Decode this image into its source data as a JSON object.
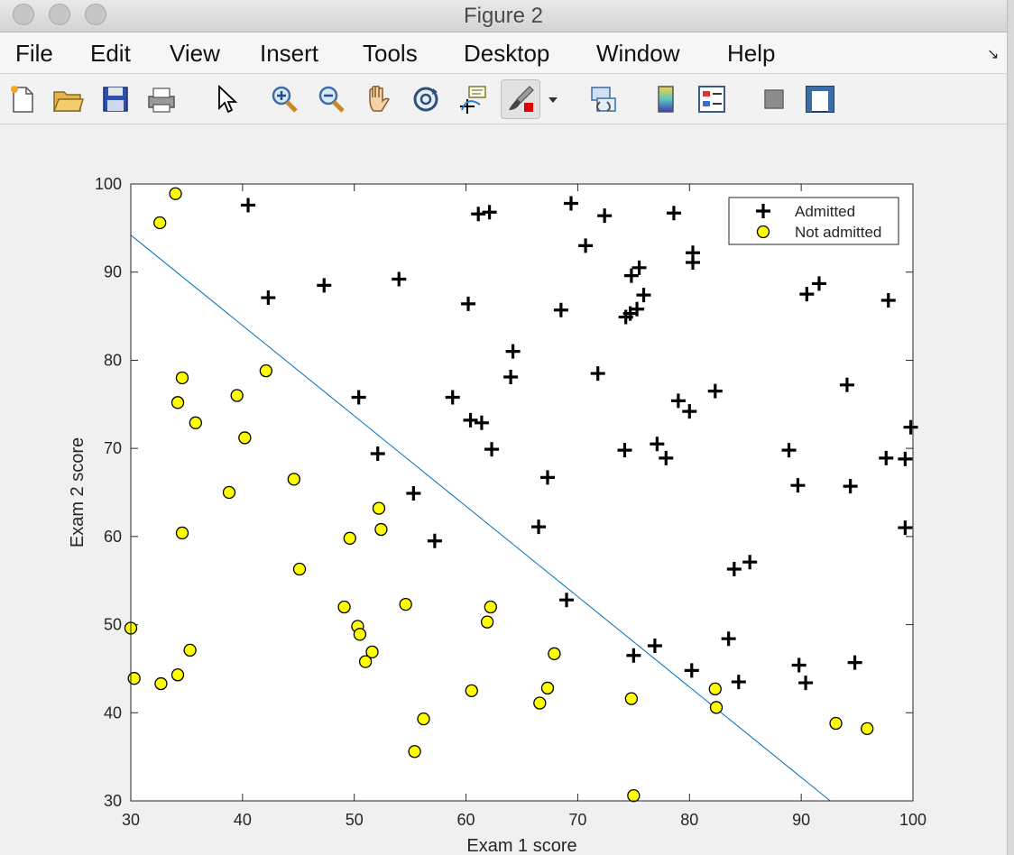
{
  "window": {
    "title": "Figure 2"
  },
  "menu": {
    "items": [
      "File",
      "Edit",
      "View",
      "Insert",
      "Tools",
      "Desktop",
      "Window",
      "Help"
    ],
    "overflow_arrow": "↘"
  },
  "toolbar": {
    "icons": [
      "new-figure-icon",
      "open-file-icon",
      "save-icon",
      "print-icon",
      "pointer-icon",
      "zoom-in-icon",
      "zoom-out-icon",
      "pan-hand-icon",
      "rotate-3d-icon",
      "data-cursor-icon",
      "brush-icon",
      "brush-dropdown-icon",
      "link-plot-icon",
      "colorbar-icon",
      "legend-icon",
      "hide-plot-tools-icon",
      "show-plot-tools-icon"
    ]
  },
  "chart_data": {
    "type": "scatter",
    "xlabel": "Exam 1 score",
    "ylabel": "Exam 2 score",
    "xlim": [
      30,
      100
    ],
    "ylim": [
      30,
      100
    ],
    "xticks": [
      30,
      40,
      50,
      60,
      70,
      80,
      90,
      100
    ],
    "yticks": [
      30,
      40,
      50,
      60,
      70,
      80,
      90,
      100
    ],
    "grid": false,
    "legend_position": "top-right",
    "series": [
      {
        "name": "Admitted",
        "marker": "plus",
        "color": "#000000",
        "points": [
          [
            40.5,
            97.6
          ],
          [
            42.3,
            87.1
          ],
          [
            47.3,
            88.5
          ],
          [
            54.0,
            89.2
          ],
          [
            50.4,
            75.8
          ],
          [
            52.1,
            69.4
          ],
          [
            55.3,
            64.9
          ],
          [
            57.2,
            59.5
          ],
          [
            60.2,
            86.4
          ],
          [
            61.1,
            96.6
          ],
          [
            62.1,
            96.8
          ],
          [
            64.2,
            81.0
          ],
          [
            64.0,
            78.1
          ],
          [
            58.8,
            75.8
          ],
          [
            60.4,
            73.2
          ],
          [
            61.4,
            72.9
          ],
          [
            62.3,
            69.9
          ],
          [
            66.5,
            61.1
          ],
          [
            67.3,
            66.7
          ],
          [
            69.4,
            97.8
          ],
          [
            70.7,
            93.0
          ],
          [
            72.4,
            96.4
          ],
          [
            68.5,
            85.7
          ],
          [
            71.8,
            78.5
          ],
          [
            74.8,
            89.6
          ],
          [
            75.5,
            90.5
          ],
          [
            75.9,
            87.4
          ],
          [
            74.3,
            84.9
          ],
          [
            74.7,
            85.3
          ],
          [
            75.3,
            85.8
          ],
          [
            74.2,
            69.8
          ],
          [
            77.1,
            70.5
          ],
          [
            77.9,
            68.9
          ],
          [
            79.0,
            75.4
          ],
          [
            80.0,
            74.2
          ],
          [
            82.3,
            76.5
          ],
          [
            78.6,
            96.7
          ],
          [
            80.3,
            92.2
          ],
          [
            80.3,
            91.1
          ],
          [
            69.0,
            52.8
          ],
          [
            75.0,
            46.5
          ],
          [
            76.9,
            47.6
          ],
          [
            80.2,
            44.8
          ],
          [
            83.5,
            48.4
          ],
          [
            84.4,
            43.5
          ],
          [
            84.0,
            56.3
          ],
          [
            85.4,
            57.1
          ],
          [
            88.9,
            69.8
          ],
          [
            89.7,
            65.8
          ],
          [
            90.5,
            87.5
          ],
          [
            91.6,
            88.7
          ],
          [
            94.1,
            77.2
          ],
          [
            94.4,
            65.7
          ],
          [
            97.8,
            86.8
          ],
          [
            97.6,
            68.9
          ],
          [
            99.3,
            68.8
          ],
          [
            99.8,
            72.4
          ],
          [
            99.3,
            61.0
          ],
          [
            89.8,
            45.4
          ],
          [
            90.4,
            43.4
          ],
          [
            94.8,
            45.7
          ]
        ]
      },
      {
        "name": "Not admitted",
        "marker": "circle",
        "color": "#ffff00",
        "points": [
          [
            34.0,
            98.9
          ],
          [
            32.6,
            95.6
          ],
          [
            34.6,
            78.0
          ],
          [
            34.2,
            75.2
          ],
          [
            35.8,
            72.9
          ],
          [
            39.5,
            76.0
          ],
          [
            42.1,
            78.8
          ],
          [
            40.2,
            71.2
          ],
          [
            38.8,
            65.0
          ],
          [
            44.6,
            66.5
          ],
          [
            34.6,
            60.4
          ],
          [
            45.1,
            56.3
          ],
          [
            49.6,
            59.8
          ],
          [
            52.2,
            63.2
          ],
          [
            52.4,
            60.8
          ],
          [
            30.0,
            49.6
          ],
          [
            30.3,
            43.9
          ],
          [
            32.7,
            43.3
          ],
          [
            34.2,
            44.3
          ],
          [
            35.3,
            47.1
          ],
          [
            49.1,
            52.0
          ],
          [
            50.3,
            49.8
          ],
          [
            50.5,
            48.9
          ],
          [
            51.6,
            46.9
          ],
          [
            51.0,
            45.8
          ],
          [
            54.6,
            52.3
          ],
          [
            56.2,
            39.3
          ],
          [
            55.4,
            35.6
          ],
          [
            60.5,
            42.5
          ],
          [
            61.9,
            50.3
          ],
          [
            62.2,
            52.0
          ],
          [
            66.6,
            41.1
          ],
          [
            67.3,
            42.8
          ],
          [
            67.9,
            46.7
          ],
          [
            74.8,
            41.6
          ],
          [
            75.0,
            30.6
          ],
          [
            82.3,
            42.7
          ],
          [
            82.4,
            40.6
          ],
          [
            93.1,
            38.8
          ],
          [
            95.9,
            38.2
          ]
        ]
      },
      {
        "name": "",
        "marker": "line",
        "color": "#0072bd",
        "points": [
          [
            30,
            94.2
          ],
          [
            92.6,
            30
          ]
        ]
      }
    ]
  }
}
